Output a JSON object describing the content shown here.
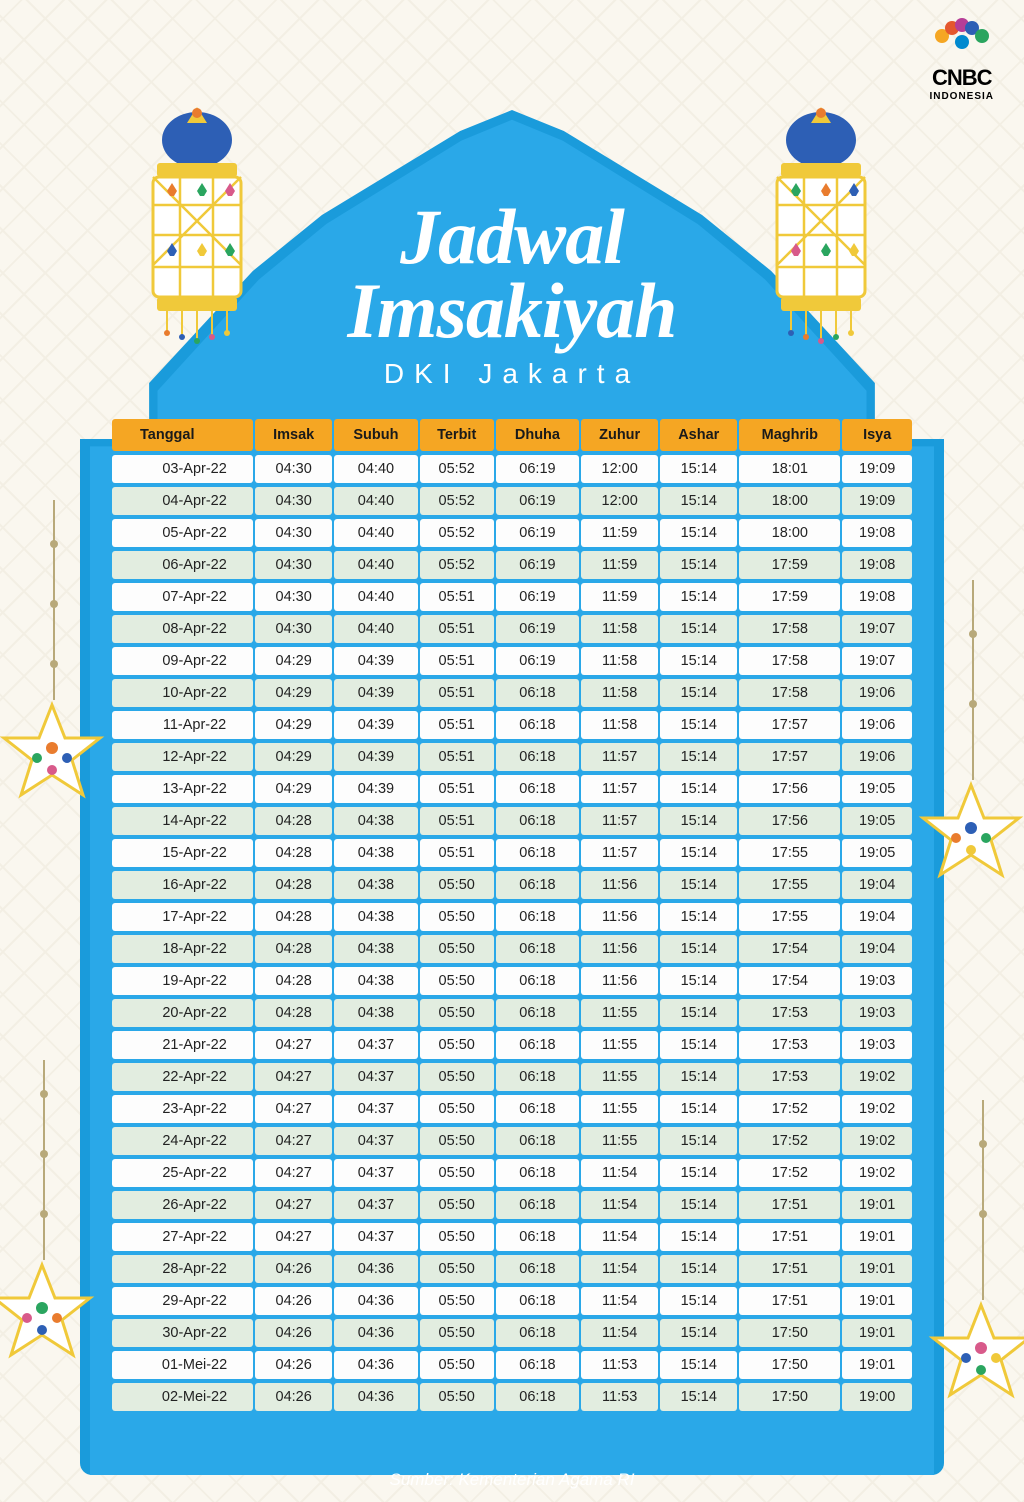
{
  "logo": {
    "brand": "CNBC",
    "sub": "INDONESIA"
  },
  "title": {
    "line1": "Jadwal",
    "line2": "Imsakiyah",
    "subtitle": "DKI Jakarta"
  },
  "source": "Sumber: Kementerian Agama RI",
  "colors": {
    "arch_outer": "#1a9bdb",
    "arch_inner": "#2aa8e8",
    "header_bg": "#f5a623",
    "row_odd": "#fdfdfd",
    "row_even": "#e2ede0",
    "background": "#faf7ef"
  },
  "table": {
    "columns": [
      "Tanggal",
      "Imsak",
      "Subuh",
      "Terbit",
      "Dhuha",
      "Zuhur",
      "Ashar",
      "Maghrib",
      "Isya"
    ],
    "rows": [
      [
        "03-Apr-22",
        "04:30",
        "04:40",
        "05:52",
        "06:19",
        "12:00",
        "15:14",
        "18:01",
        "19:09"
      ],
      [
        "04-Apr-22",
        "04:30",
        "04:40",
        "05:52",
        "06:19",
        "12:00",
        "15:14",
        "18:00",
        "19:09"
      ],
      [
        "05-Apr-22",
        "04:30",
        "04:40",
        "05:52",
        "06:19",
        "11:59",
        "15:14",
        "18:00",
        "19:08"
      ],
      [
        "06-Apr-22",
        "04:30",
        "04:40",
        "05:52",
        "06:19",
        "11:59",
        "15:14",
        "17:59",
        "19:08"
      ],
      [
        "07-Apr-22",
        "04:30",
        "04:40",
        "05:51",
        "06:19",
        "11:59",
        "15:14",
        "17:59",
        "19:08"
      ],
      [
        "08-Apr-22",
        "04:30",
        "04:40",
        "05:51",
        "06:19",
        "11:58",
        "15:14",
        "17:58",
        "19:07"
      ],
      [
        "09-Apr-22",
        "04:29",
        "04:39",
        "05:51",
        "06:19",
        "11:58",
        "15:14",
        "17:58",
        "19:07"
      ],
      [
        "10-Apr-22",
        "04:29",
        "04:39",
        "05:51",
        "06:18",
        "11:58",
        "15:14",
        "17:58",
        "19:06"
      ],
      [
        "11-Apr-22",
        "04:29",
        "04:39",
        "05:51",
        "06:18",
        "11:58",
        "15:14",
        "17:57",
        "19:06"
      ],
      [
        "12-Apr-22",
        "04:29",
        "04:39",
        "05:51",
        "06:18",
        "11:57",
        "15:14",
        "17:57",
        "19:06"
      ],
      [
        "13-Apr-22",
        "04:29",
        "04:39",
        "05:51",
        "06:18",
        "11:57",
        "15:14",
        "17:56",
        "19:05"
      ],
      [
        "14-Apr-22",
        "04:28",
        "04:38",
        "05:51",
        "06:18",
        "11:57",
        "15:14",
        "17:56",
        "19:05"
      ],
      [
        "15-Apr-22",
        "04:28",
        "04:38",
        "05:51",
        "06:18",
        "11:57",
        "15:14",
        "17:55",
        "19:05"
      ],
      [
        "16-Apr-22",
        "04:28",
        "04:38",
        "05:50",
        "06:18",
        "11:56",
        "15:14",
        "17:55",
        "19:04"
      ],
      [
        "17-Apr-22",
        "04:28",
        "04:38",
        "05:50",
        "06:18",
        "11:56",
        "15:14",
        "17:55",
        "19:04"
      ],
      [
        "18-Apr-22",
        "04:28",
        "04:38",
        "05:50",
        "06:18",
        "11:56",
        "15:14",
        "17:54",
        "19:04"
      ],
      [
        "19-Apr-22",
        "04:28",
        "04:38",
        "05:50",
        "06:18",
        "11:56",
        "15:14",
        "17:54",
        "19:03"
      ],
      [
        "20-Apr-22",
        "04:28",
        "04:38",
        "05:50",
        "06:18",
        "11:55",
        "15:14",
        "17:53",
        "19:03"
      ],
      [
        "21-Apr-22",
        "04:27",
        "04:37",
        "05:50",
        "06:18",
        "11:55",
        "15:14",
        "17:53",
        "19:03"
      ],
      [
        "22-Apr-22",
        "04:27",
        "04:37",
        "05:50",
        "06:18",
        "11:55",
        "15:14",
        "17:53",
        "19:02"
      ],
      [
        "23-Apr-22",
        "04:27",
        "04:37",
        "05:50",
        "06:18",
        "11:55",
        "15:14",
        "17:52",
        "19:02"
      ],
      [
        "24-Apr-22",
        "04:27",
        "04:37",
        "05:50",
        "06:18",
        "11:55",
        "15:14",
        "17:52",
        "19:02"
      ],
      [
        "25-Apr-22",
        "04:27",
        "04:37",
        "05:50",
        "06:18",
        "11:54",
        "15:14",
        "17:52",
        "19:02"
      ],
      [
        "26-Apr-22",
        "04:27",
        "04:37",
        "05:50",
        "06:18",
        "11:54",
        "15:14",
        "17:51",
        "19:01"
      ],
      [
        "27-Apr-22",
        "04:27",
        "04:37",
        "05:50",
        "06:18",
        "11:54",
        "15:14",
        "17:51",
        "19:01"
      ],
      [
        "28-Apr-22",
        "04:26",
        "04:36",
        "05:50",
        "06:18",
        "11:54",
        "15:14",
        "17:51",
        "19:01"
      ],
      [
        "29-Apr-22",
        "04:26",
        "04:36",
        "05:50",
        "06:18",
        "11:54",
        "15:14",
        "17:51",
        "19:01"
      ],
      [
        "30-Apr-22",
        "04:26",
        "04:36",
        "05:50",
        "06:18",
        "11:54",
        "15:14",
        "17:50",
        "19:01"
      ],
      [
        "01-Mei-22",
        "04:26",
        "04:36",
        "05:50",
        "06:18",
        "11:53",
        "15:14",
        "17:50",
        "19:01"
      ],
      [
        "02-Mei-22",
        "04:26",
        "04:36",
        "05:50",
        "06:18",
        "11:53",
        "15:14",
        "17:50",
        "19:00"
      ]
    ]
  },
  "lantern_colors": {
    "dome": "#2d5fb5",
    "body": [
      "#e97c2e",
      "#2d5fb5",
      "#2aa55f",
      "#f0c93a"
    ],
    "outline": "#f0c93a"
  },
  "star_colors": [
    "#e97c2e",
    "#2d5fb5",
    "#2aa55f",
    "#f0c93a",
    "#d85a8a"
  ]
}
